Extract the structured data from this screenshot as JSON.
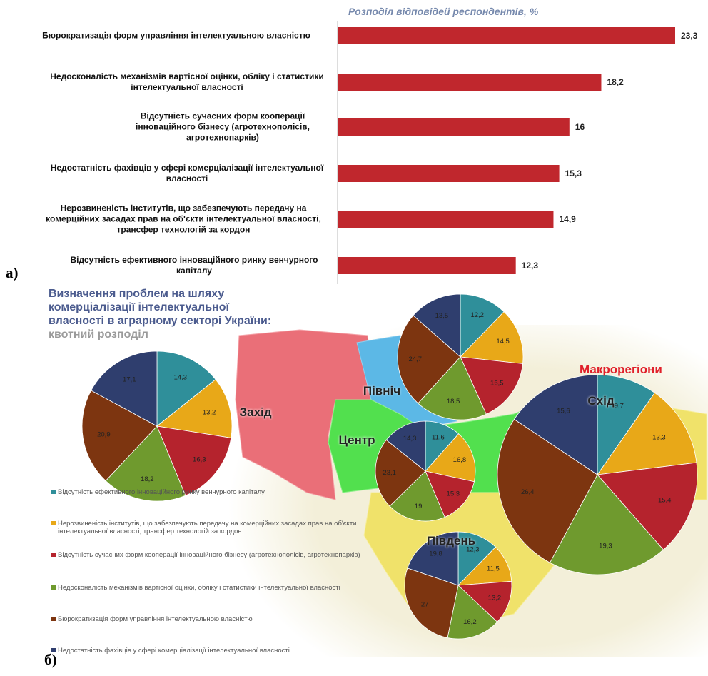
{
  "panels": [
    "а)",
    "б)"
  ],
  "chart_data": [
    {
      "type": "bar",
      "title": "Розподіл відповідей респондентів, %",
      "categories": [
        "Бюрократизація форм управління інтелектуальною власністю",
        "Недосконалість механізмів вартісної оцінки, обліку і статистики інтелектуальної власності",
        "Відсутність сучасних форм кооперації інноваційного бізнесу (агротехнополісів, агротехнопарків)",
        "Недостатність фахівців у сфері комерціалізації інтелектуальної власності",
        "Нерозвиненість інститутів, що забезпечують передачу на комерційних засадах прав на об'єкти інтелектуальної власності, трансфер технологій за кордон",
        "Відсутність ефективного інноваційного ринку венчурного капіталу"
      ],
      "values": [
        23.3,
        18.2,
        16,
        15.3,
        14.9,
        12.3
      ],
      "value_labels": [
        "23,3",
        "18,2",
        "16",
        "15,3",
        "14,9",
        "12,3"
      ],
      "color": "#c0272d"
    },
    {
      "type": "pie",
      "title": "Визначення проблем на шляху комерціалізації інтелектуальної власності в аграрному секторі України:",
      "subtitle": "квотний розподіл",
      "legend_title": "Макрорегіони",
      "categories": [
        "Відсутність ефективного інноваційного ринку венчурного капіталу",
        "Нерозвиненість інститутів, що забезпечують передачу на комерційних засадах прав на об'єкти інтелектуальної власності, трансфер технологій за кордон",
        "Відсутність сучасних форм кооперації інноваційного бізнесу (агротехнополісів, агротехнопарків)",
        "Недосконалість механізмів вартісної оцінки, обліку і статистики інтелектуальної власності",
        "Бюрократизація форм управління інтелектуальною власністю",
        "Недостатність фахівців у сфері комерціалізації інтелектуальної власності"
      ],
      "colors": [
        "#2f8f9a",
        "#e8a818",
        "#b5232d",
        "#6f9a2e",
        "#7d3510",
        "#2f3e6e"
      ],
      "pies": [
        {
          "name": "Захід",
          "values": [
            14.3,
            13.2,
            16.3,
            18.2,
            20.9,
            17.1
          ],
          "value_labels": [
            "14,3",
            "13,2",
            "16,3",
            "18,2",
            "20,9",
            "17,1"
          ]
        },
        {
          "name": "Північ",
          "values": [
            12.2,
            14.5,
            16.5,
            18.5,
            24.7,
            13.5
          ],
          "value_labels": [
            "12,2",
            "14,5",
            "16,5",
            "18,5",
            "24,7",
            "13,5"
          ]
        },
        {
          "name": "Центр",
          "values": [
            11.6,
            16.8,
            15.3,
            19,
            23.1,
            14.3
          ],
          "value_labels": [
            "11,6",
            "16,8",
            "15,3",
            "19",
            "23,1",
            "14,3"
          ]
        },
        {
          "name": "Схід",
          "values": [
            9.7,
            13.3,
            15.4,
            19.3,
            26.4,
            15.6
          ],
          "value_labels": [
            "9,7",
            "13,3",
            "15,4",
            "19,3",
            "26,4",
            "15,6"
          ]
        },
        {
          "name": "Південь",
          "values": [
            12.3,
            11.5,
            13.2,
            16.2,
            27,
            19.8
          ],
          "value_labels": [
            "12,3",
            "11,5",
            "13,2",
            "16,2",
            "27",
            "19,8"
          ]
        }
      ]
    }
  ]
}
